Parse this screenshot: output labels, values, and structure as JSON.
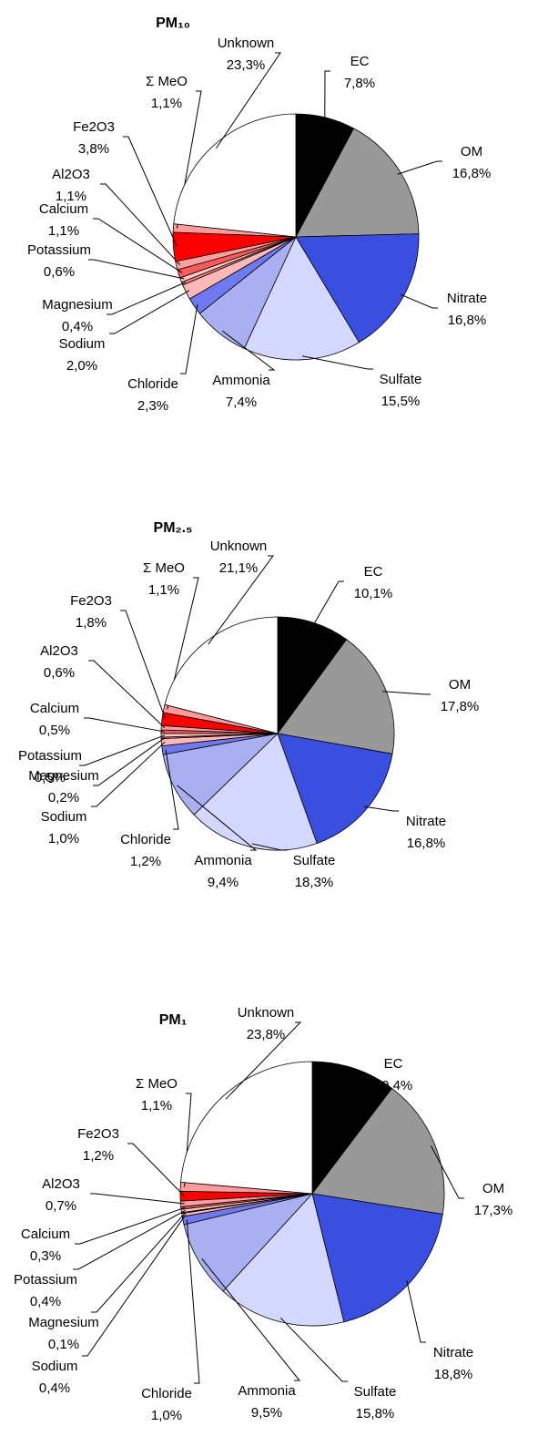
{
  "chart_data": [
    {
      "type": "pie",
      "title": "PM₁₀",
      "categories": [
        "EC",
        "OM",
        "Nitrate",
        "Sulfate",
        "Ammonia",
        "Chloride",
        "Sodium",
        "Magnesium",
        "Potassium",
        "Calcium",
        "Al2O3",
        "Fe2O3",
        "Σ MeO",
        "Unknown"
      ],
      "values": [
        7.8,
        16.8,
        16.8,
        15.5,
        7.4,
        2.3,
        2.0,
        0.4,
        0.6,
        1.1,
        1.1,
        3.8,
        1.1,
        23.3
      ],
      "value_labels": [
        "7,8%",
        "16,8%",
        "16,8%",
        "15,5%",
        "7,4%",
        "2,3%",
        "2,0%",
        "0,4%",
        "0,6%",
        "1,1%",
        "1,1%",
        "3,8%",
        "1,1%",
        "23,3%"
      ],
      "colors": [
        "#000000",
        "#999999",
        "#3a4ee0",
        "#d4d8ff",
        "#a9aff0",
        "#6f7af0",
        "#ffb8b8",
        "#ff7f7f",
        "#ffc8c8",
        "#ff5a5a",
        "#ffa0a0",
        "#ff0000",
        "#ff9a9a",
        "#ffffff"
      ]
    },
    {
      "type": "pie",
      "title": "PM₂.₅",
      "categories": [
        "EC",
        "OM",
        "Nitrate",
        "Sulfate",
        "Ammonia",
        "Chloride",
        "Sodium",
        "Magnesium",
        "Potassium",
        "Calcium",
        "Al2O3",
        "Fe2O3",
        "Σ MeO",
        "Unknown"
      ],
      "values": [
        10.1,
        17.8,
        16.8,
        18.3,
        9.4,
        1.2,
        1.0,
        0.2,
        0.5,
        0.5,
        0.6,
        1.8,
        1.1,
        21.1
      ],
      "value_labels": [
        "10,1%",
        "17,8%",
        "16,8%",
        "18,3%",
        "9,4%",
        "1,2%",
        "1,0%",
        "0,2%",
        "0,5%",
        "0,5%",
        "0,6%",
        "1,8%",
        "1,1%",
        "21,1%"
      ],
      "colors": [
        "#000000",
        "#999999",
        "#3a4ee0",
        "#d4d8ff",
        "#a9aff0",
        "#6f7af0",
        "#ffb8b8",
        "#ff7f7f",
        "#ffc8c8",
        "#ff5a5a",
        "#ffa0a0",
        "#ff0000",
        "#ff9a9a",
        "#ffffff"
      ]
    },
    {
      "type": "pie",
      "title": "PM₁",
      "categories": [
        "EC",
        "OM",
        "Nitrate",
        "Sulfate",
        "Ammonia",
        "Chloride",
        "Sodium",
        "Magnesium",
        "Potassium",
        "Calcium",
        "Al2O3",
        "Fe2O3",
        "Σ MeO",
        "Unknown"
      ],
      "values": [
        10.4,
        17.3,
        18.8,
        15.8,
        9.5,
        1.0,
        0.4,
        0.1,
        0.4,
        0.3,
        0.7,
        1.2,
        1.1,
        23.8
      ],
      "value_labels": [
        "10,4%",
        "17,3%",
        "18,8%",
        "15,8%",
        "9,5%",
        "1,0%",
        "0,4%",
        "0,1%",
        "0,4%",
        "0,3%",
        "0,7%",
        "1,2%",
        "1,1%",
        "23,8%"
      ],
      "colors": [
        "#000000",
        "#999999",
        "#3a4ee0",
        "#d4d8ff",
        "#a9aff0",
        "#6f7af0",
        "#ffb8b8",
        "#ff7f7f",
        "#ffc8c8",
        "#ff5a5a",
        "#ffa0a0",
        "#ff0000",
        "#ff9a9a",
        "#ffffff"
      ]
    }
  ]
}
